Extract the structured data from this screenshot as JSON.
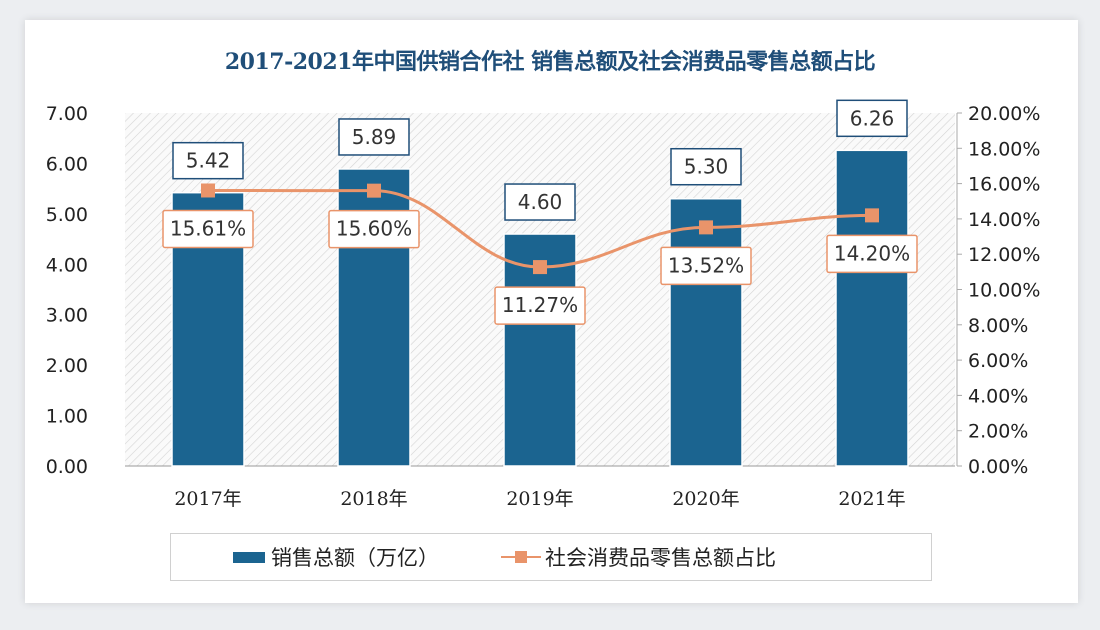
{
  "title": "2017-2021年中国供销合作社 销售总额及社会消费品零售总额占比",
  "chart_data": {
    "type": "bar+line",
    "title": "2017-2021年中国供销合作社 销售总额及社会消费品零售总额占比",
    "categories": [
      "2017年",
      "2018年",
      "2019年",
      "2020年",
      "2021年"
    ],
    "series": [
      {
        "name": "销售总额（万亿）",
        "type": "bar",
        "axis": "left",
        "values": [
          5.42,
          5.89,
          4.6,
          5.3,
          6.26
        ],
        "labels": [
          "5.42",
          "5.89",
          "4.60",
          "5.30",
          "6.26"
        ],
        "color": "#1b6490"
      },
      {
        "name": "社会消费品零售总额占比",
        "type": "line",
        "axis": "right",
        "values": [
          15.61,
          15.6,
          11.27,
          13.52,
          14.2
        ],
        "labels": [
          "15.61%",
          "15.60%",
          "11.27%",
          "13.52%",
          "14.20%"
        ],
        "color": "#e9946a"
      }
    ],
    "y_left": {
      "range": [
        0,
        7
      ],
      "ticks": [
        "0.00",
        "1.00",
        "2.00",
        "3.00",
        "4.00",
        "5.00",
        "6.00",
        "7.00"
      ]
    },
    "y_right": {
      "range": [
        0,
        20
      ],
      "ticks": [
        "0.00%",
        "2.00%",
        "4.00%",
        "6.00%",
        "8.00%",
        "10.00%",
        "12.00%",
        "14.00%",
        "16.00%",
        "18.00%",
        "20.00%"
      ]
    },
    "grid": false,
    "legend_position": "bottom"
  }
}
